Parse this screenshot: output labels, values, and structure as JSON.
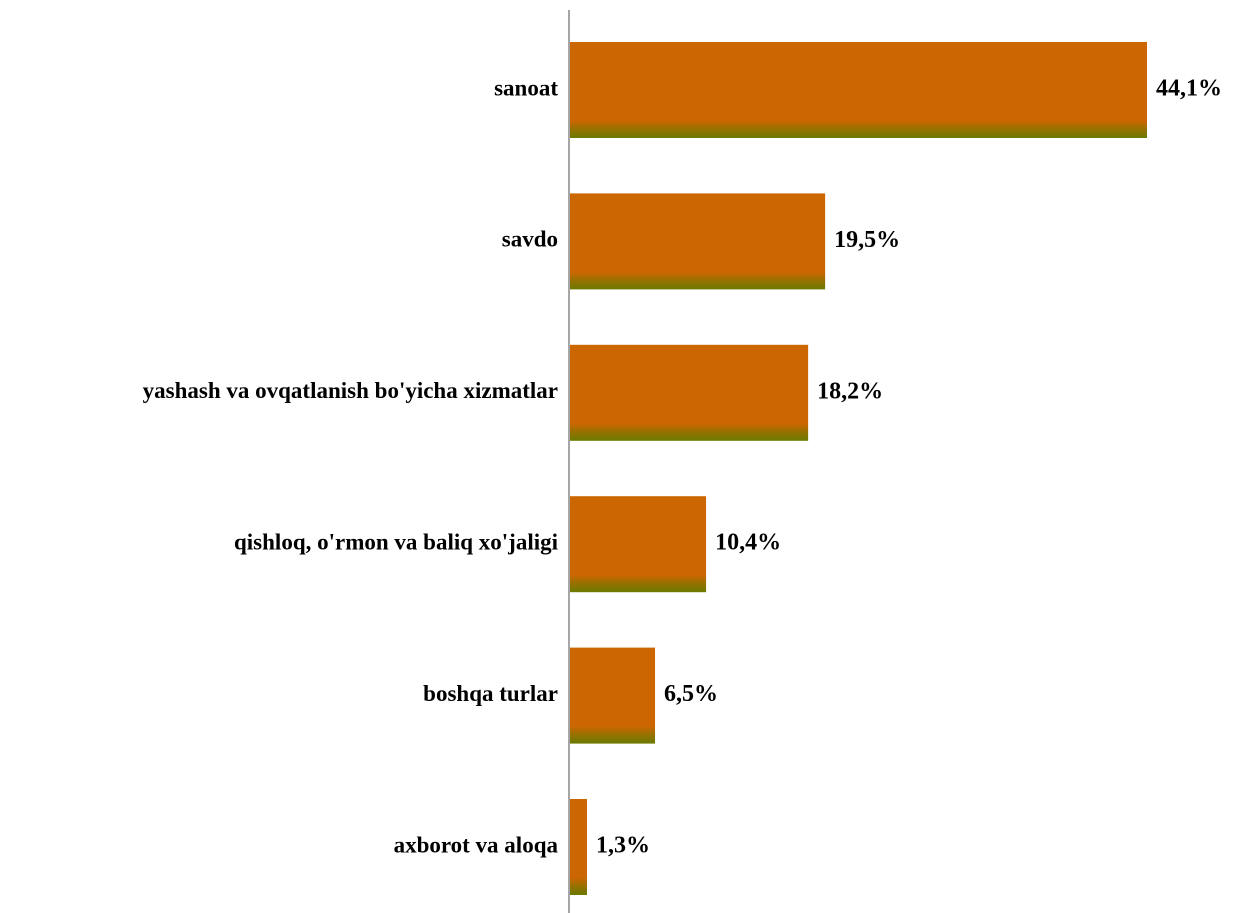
{
  "chart_data": {
    "type": "bar",
    "orientation": "horizontal",
    "categories": [
      "sanoat",
      "savdo",
      "yashash va ovqatlanish bo'yicha xizmatlar",
      "qishloq, o'rmon va baliq xo'jaligi",
      "boshqa turlar",
      "axborot va aloqa"
    ],
    "values": [
      44.1,
      19.5,
      18.2,
      10.4,
      6.5,
      1.3
    ],
    "value_labels": [
      "44,1%",
      "19,5%",
      "18,2%",
      "10,4%",
      "6,5%",
      "1,3%"
    ],
    "title": "",
    "xlabel": "",
    "ylabel": "",
    "xlim": [
      0,
      44.1
    ],
    "grid": false,
    "legend": "none",
    "colors": {
      "bar_fill": "#cc6600",
      "bar_shade": "#6b7a00",
      "axis": "#888888",
      "text": "#000000"
    }
  }
}
